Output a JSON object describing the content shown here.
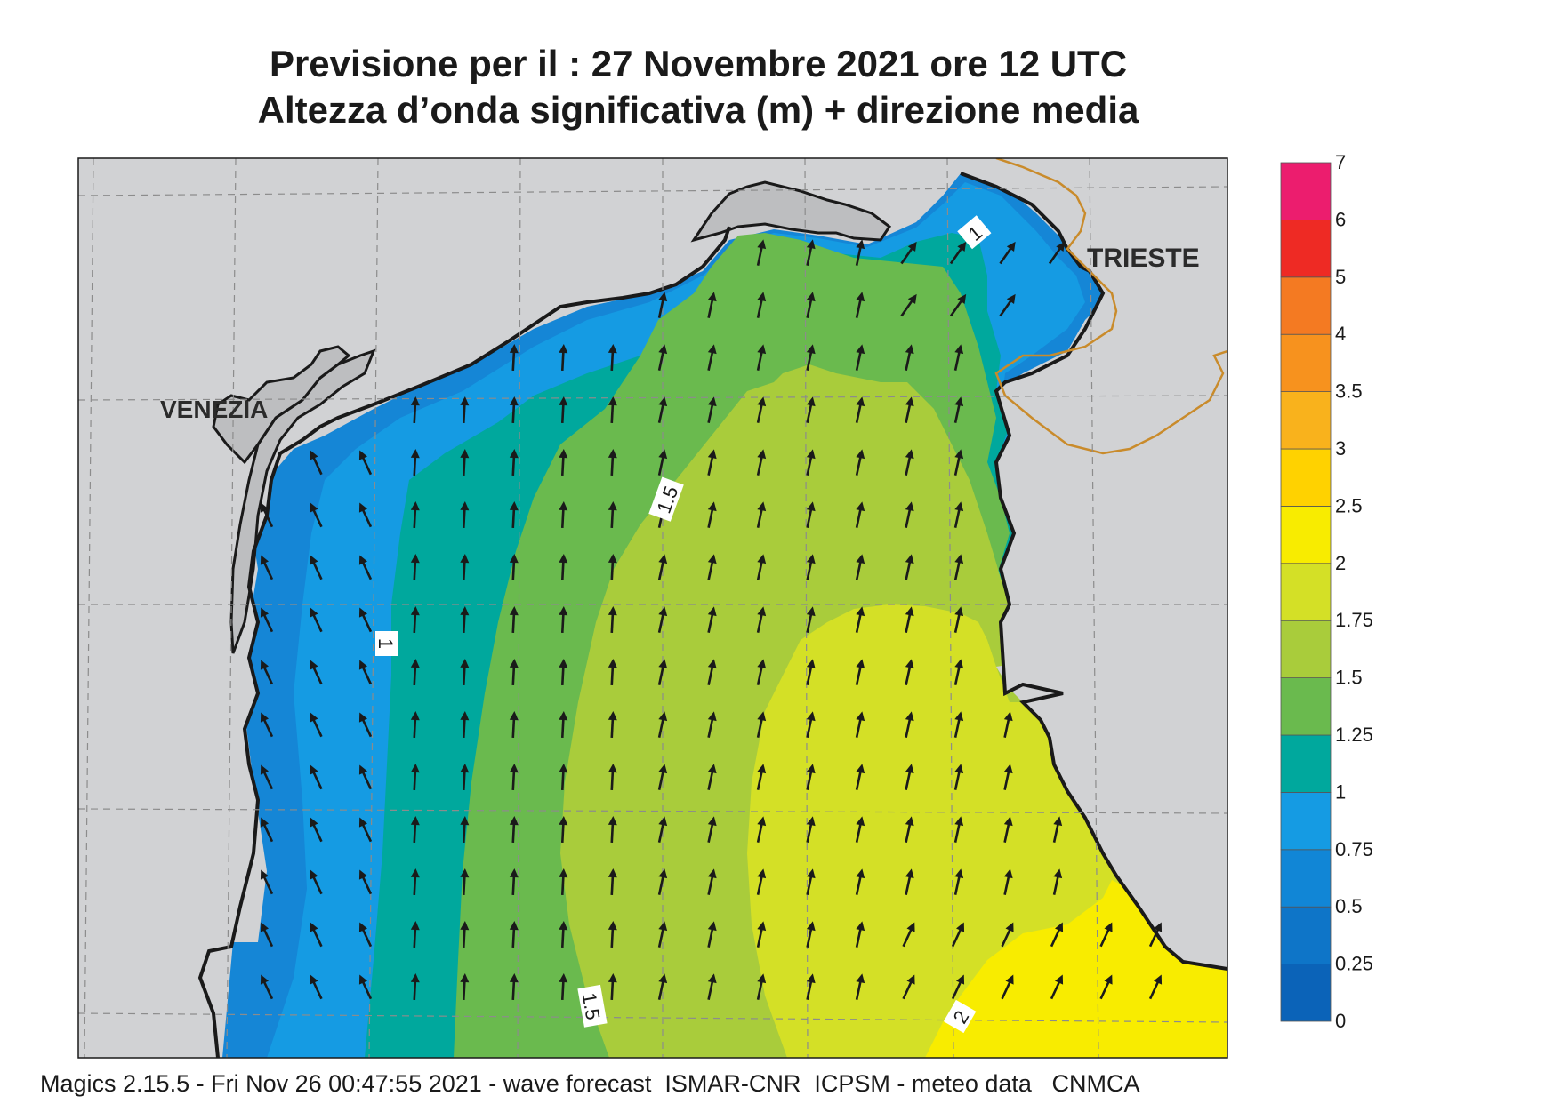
{
  "title_line1": "Previsione per il  :  27 Novembre  2021   ore 12 UTC",
  "title_line2": "Altezza d’onda significativa (m) + direzione media",
  "city_labels": {
    "venezia": "VENEZIA",
    "trieste": "TRIESTE"
  },
  "contour_labels": [
    "1",
    "1.5",
    "1.5",
    "1",
    "2"
  ],
  "colorbar": {
    "ticks": [
      "0",
      "0.25",
      "0.5",
      "0.75",
      "1",
      "1.25",
      "1.5",
      "1.75",
      "2",
      "2.5",
      "3",
      "3.5",
      "4",
      "5",
      "6",
      "7"
    ],
    "colors": [
      "#0b63b8",
      "#0e75c8",
      "#1186d6",
      "#159be3",
      "#00a89d",
      "#6aba4e",
      "#a9cc3b",
      "#d4e026",
      "#f8ec00",
      "#ffd200",
      "#f9b21c",
      "#f7921e",
      "#f47a22",
      "#ee2a24",
      "#ec1d6e"
    ]
  },
  "colors": {
    "land": "#d1d2d4",
    "sea_00": "#0e75c8",
    "sea_05": "#1586d6",
    "sea_075": "#159be3",
    "sea_10": "#00a89d",
    "sea_125": "#6aba4e",
    "sea_15": "#a9cc3b",
    "sea_175": "#d4e026",
    "sea_20": "#f8ec00",
    "coast": "#1a1a1a",
    "border": "#c98b2b",
    "arrow": "#1a1a1a",
    "grid": "#8c8c8c"
  },
  "footer": "Magics 2.15.5 - Fri Nov 26 00:47:55 2021 - wave forecast  ISMAR-CNR  ICPSM - meteo data   CNMCA"
}
